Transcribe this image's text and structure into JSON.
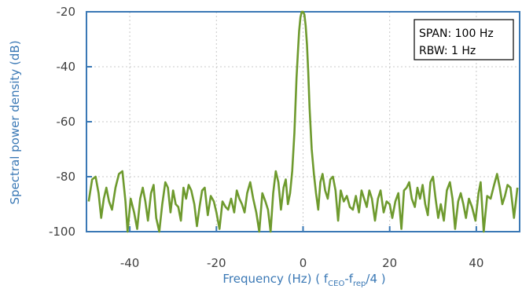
{
  "chart_data": {
    "type": "line",
    "xlabel": "Frequency (Hz)",
    "xlabel_suffix_parts": [
      "  ( f",
      "CEO",
      "-f",
      "rep",
      "/4 )"
    ],
    "ylabel": "Spectral power density (dB)",
    "xlim": [
      -50,
      50
    ],
    "ylim": [
      -100,
      -20
    ],
    "x_ticks": [
      -40,
      -20,
      0,
      20,
      40
    ],
    "y_ticks": [
      -20,
      -40,
      -60,
      -80,
      -100
    ],
    "grid": true,
    "annotation": [
      "SPAN: 100 Hz",
      "RBW: 1 Hz"
    ],
    "colors": {
      "line": "#6e9a2e",
      "axis": "#3a78b5",
      "grid": "#c8c8c8"
    },
    "series": [
      {
        "x": [
          -49.5,
          -48.7,
          -47.9,
          -47.2,
          -46.6,
          -46.0,
          -45.4,
          -44.8,
          -44.1,
          -43.3,
          -42.5,
          -41.7,
          -41.0,
          -40.5,
          -39.8,
          -39.0,
          -38.3,
          -37.6,
          -37.0,
          -36.4,
          -35.8,
          -35.1,
          -34.5,
          -33.9,
          -33.2,
          -32.5,
          -31.8,
          -31.2,
          -30.6,
          -30.0,
          -29.4,
          -28.8,
          -28.2,
          -27.6,
          -27.0,
          -26.4,
          -25.8,
          -25.1,
          -24.5,
          -23.9,
          -23.3,
          -22.7,
          -22.0,
          -21.3,
          -20.6,
          -20.0,
          -19.3,
          -18.6,
          -17.9,
          -17.3,
          -16.6,
          -15.9,
          -15.3,
          -14.7,
          -14.1,
          -13.5,
          -12.9,
          -12.2,
          -11.5,
          -10.8,
          -10.1,
          -9.4,
          -8.7,
          -8.1,
          -7.5,
          -6.9,
          -6.3,
          -5.7,
          -5.1,
          -4.5,
          -4.0,
          -3.5,
          -3.0,
          -2.5,
          -2.0,
          -1.5,
          -1.2,
          -0.9,
          -0.6,
          -0.3,
          0.0,
          0.3,
          0.6,
          0.9,
          1.2,
          1.5,
          2.0,
          2.5,
          3.0,
          3.5,
          4.0,
          4.5,
          5.1,
          5.7,
          6.3,
          6.9,
          7.5,
          8.1,
          8.7,
          9.4,
          10.1,
          10.8,
          11.5,
          12.2,
          12.9,
          13.5,
          14.1,
          14.7,
          15.3,
          15.9,
          16.6,
          17.3,
          17.9,
          18.6,
          19.3,
          20.0,
          20.6,
          21.3,
          22.0,
          22.7,
          23.3,
          23.9,
          24.5,
          25.1,
          25.8,
          26.4,
          27.0,
          27.6,
          28.2,
          28.8,
          29.4,
          30.0,
          30.6,
          31.2,
          31.8,
          32.5,
          33.2,
          33.9,
          34.5,
          35.1,
          35.8,
          36.4,
          37.0,
          37.6,
          38.3,
          39.0,
          39.8,
          40.5,
          41.0,
          41.7,
          42.5,
          43.3,
          44.1,
          44.8,
          45.4,
          46.0,
          46.6,
          47.2,
          47.9,
          48.7,
          49.5
        ],
        "y": [
          -89,
          -81,
          -80,
          -86,
          -95,
          -88,
          -84,
          -89,
          -92,
          -84,
          -79,
          -78,
          -89,
          -100,
          -88,
          -93,
          -99,
          -88,
          -84,
          -89,
          -96,
          -86,
          -83,
          -95,
          -100,
          -90,
          -82,
          -84,
          -93,
          -85,
          -90,
          -91,
          -96,
          -84,
          -88,
          -83,
          -85,
          -90,
          -98,
          -91,
          -85,
          -84,
          -94,
          -87,
          -89,
          -93,
          -99,
          -89,
          -91,
          -92,
          -88,
          -93,
          -85,
          -88,
          -90,
          -93,
          -86,
          -82,
          -88,
          -93,
          -100,
          -86,
          -89,
          -92,
          -100,
          -86,
          -78,
          -82,
          -92,
          -84,
          -81,
          -90,
          -86,
          -78,
          -64,
          -44,
          -35,
          -27,
          -22,
          -20,
          -20,
          -21,
          -25,
          -32,
          -42,
          -55,
          -70,
          -79,
          -86,
          -92,
          -82,
          -79,
          -85,
          -88,
          -81,
          -80,
          -85,
          -96,
          -85,
          -89,
          -87,
          -91,
          -92,
          -87,
          -93,
          -85,
          -88,
          -91,
          -85,
          -88,
          -96,
          -88,
          -85,
          -93,
          -89,
          -90,
          -95,
          -89,
          -86,
          -99,
          -85,
          -84,
          -82,
          -88,
          -91,
          -84,
          -88,
          -83,
          -90,
          -94,
          -82,
          -80,
          -88,
          -95,
          -90,
          -96,
          -85,
          -82,
          -88,
          -99,
          -89,
          -86,
          -90,
          -95,
          -88,
          -91,
          -96,
          -86,
          -82,
          -100,
          -87,
          -88,
          -83,
          -79,
          -84,
          -90,
          -87,
          -83,
          -84,
          -95,
          -84
        ]
      }
    ]
  }
}
